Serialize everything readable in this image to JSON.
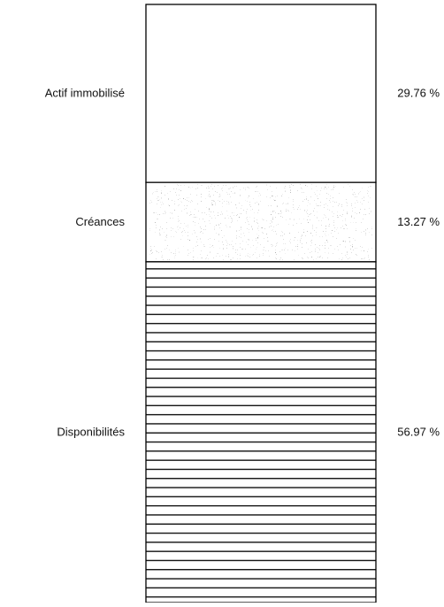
{
  "chart_data": {
    "type": "bar",
    "stacked": true,
    "categories": [
      "Actif immobilisé",
      "Créances",
      "Disponibilités"
    ],
    "values": [
      29.76,
      13.27,
      56.97
    ],
    "value_labels": [
      "29.76 %",
      "13.27 %",
      "56.97 %"
    ],
    "fills": [
      "blank",
      "stipple",
      "horizontal-lines"
    ],
    "title": "",
    "xlabel": "",
    "ylabel": "",
    "ylim": [
      0,
      100
    ],
    "grid": false,
    "legend": "none"
  }
}
